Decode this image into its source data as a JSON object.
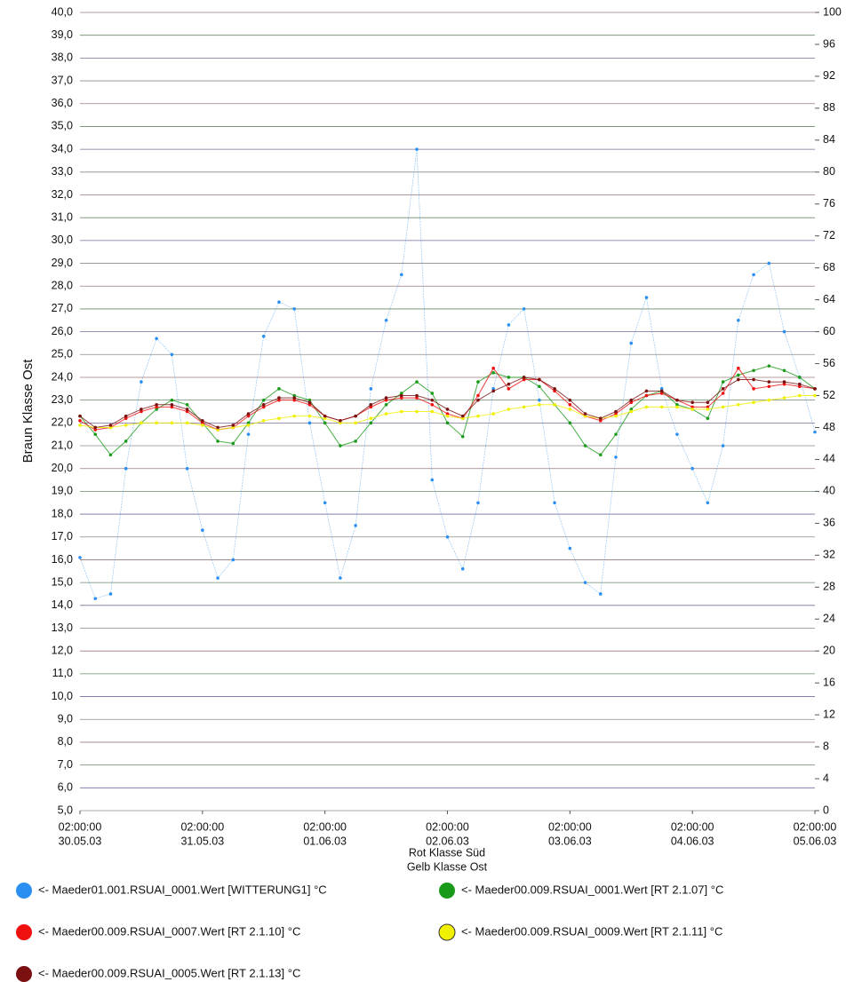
{
  "chart_data": {
    "type": "line",
    "ylabel": "Braun Klasse Ost",
    "xlabels": [
      "Rot Klasse Süd",
      "Gelb Klasse Ost"
    ],
    "x": [
      "30.05.03 02:00:00",
      "30.05.03 05:00:00",
      "30.05.03 08:00:00",
      "30.05.03 11:00:00",
      "30.05.03 14:00:00",
      "30.05.03 17:00:00",
      "30.05.03 20:00:00",
      "30.05.03 23:00:00",
      "31.05.03 02:00:00",
      "31.05.03 05:00:00",
      "31.05.03 08:00:00",
      "31.05.03 11:00:00",
      "31.05.03 14:00:00",
      "31.05.03 17:00:00",
      "31.05.03 20:00:00",
      "31.05.03 23:00:00",
      "01.06.03 02:00:00",
      "01.06.03 05:00:00",
      "01.06.03 08:00:00",
      "01.06.03 11:00:00",
      "01.06.03 14:00:00",
      "01.06.03 17:00:00",
      "01.06.03 20:00:00",
      "01.06.03 23:00:00",
      "02.06.03 02:00:00",
      "02.06.03 05:00:00",
      "02.06.03 08:00:00",
      "02.06.03 11:00:00",
      "02.06.03 14:00:00",
      "02.06.03 17:00:00",
      "02.06.03 20:00:00",
      "02.06.03 23:00:00",
      "03.06.03 02:00:00",
      "03.06.03 05:00:00",
      "03.06.03 08:00:00",
      "03.06.03 11:00:00",
      "03.06.03 14:00:00",
      "03.06.03 17:00:00",
      "03.06.03 20:00:00",
      "03.06.03 23:00:00",
      "04.06.03 02:00:00",
      "04.06.03 05:00:00",
      "04.06.03 08:00:00",
      "04.06.03 11:00:00",
      "04.06.03 14:00:00",
      "04.06.03 17:00:00",
      "04.06.03 20:00:00",
      "04.06.03 23:00:00",
      "05.06.03 02:00:00"
    ],
    "series": [
      {
        "name": "<- Maeder01.001.RSUAI_0001.Wert [WITTERUNG1] °C",
        "color": "#2a8ff0",
        "values": [
          16.1,
          14.3,
          14.5,
          20.0,
          23.8,
          25.7,
          25.0,
          20.0,
          17.3,
          15.2,
          16.0,
          21.5,
          25.8,
          27.3,
          27.0,
          22.0,
          18.5,
          15.2,
          17.5,
          23.5,
          26.5,
          28.5,
          34.0,
          19.5,
          17.0,
          15.6,
          18.5,
          23.5,
          26.3,
          27.0,
          23.0,
          18.5,
          16.5,
          15.0,
          14.5,
          20.5,
          25.5,
          27.5,
          23.5,
          21.5,
          20.0,
          18.5,
          21.0,
          26.5,
          28.5,
          29.0,
          26.0,
          24.0,
          21.6
        ]
      },
      {
        "name": "<- Maeder00.009.RSUAI_0001.Wert [RT 2.1.07] °C",
        "color": "#1a9a1a",
        "values": [
          22.3,
          21.5,
          20.6,
          21.2,
          22.0,
          22.6,
          23.0,
          22.8,
          22.0,
          21.2,
          21.1,
          22.0,
          23.0,
          23.5,
          23.2,
          23.0,
          22.0,
          21.0,
          21.2,
          22.0,
          22.8,
          23.3,
          23.8,
          23.3,
          22.0,
          21.4,
          23.8,
          24.2,
          24.0,
          24.0,
          23.6,
          22.8,
          22.0,
          21.0,
          20.6,
          21.5,
          22.6,
          23.2,
          23.4,
          22.8,
          22.6,
          22.2,
          23.8,
          24.1,
          24.3,
          24.5,
          24.3,
          24.0,
          23.5
        ]
      },
      {
        "name": "<- Maeder00.009.RSUAI_0007.Wert [RT 2.1.10] °C",
        "color": "#f01010",
        "values": [
          22.1,
          21.7,
          21.8,
          22.2,
          22.5,
          22.7,
          22.7,
          22.5,
          22.0,
          21.7,
          21.8,
          22.3,
          22.7,
          23.0,
          23.0,
          22.8,
          22.3,
          22.1,
          22.3,
          22.7,
          23.0,
          23.1,
          23.1,
          22.8,
          22.4,
          22.2,
          23.2,
          24.4,
          23.5,
          23.9,
          23.9,
          23.4,
          22.8,
          22.3,
          22.1,
          22.4,
          22.9,
          23.2,
          23.3,
          23.0,
          22.7,
          22.7,
          23.3,
          24.4,
          23.5,
          23.6,
          23.7,
          23.6,
          23.5
        ]
      },
      {
        "name": "<- Maeder00.009.RSUAI_0009.Wert [RT 2.1.11] °C",
        "color": "#f0f000",
        "values": [
          21.9,
          21.8,
          21.8,
          21.9,
          22.0,
          22.0,
          22.0,
          22.0,
          21.9,
          21.7,
          21.8,
          21.9,
          22.1,
          22.2,
          22.3,
          22.3,
          22.2,
          22.0,
          22.0,
          22.2,
          22.4,
          22.5,
          22.5,
          22.5,
          22.3,
          22.2,
          22.3,
          22.4,
          22.6,
          22.7,
          22.8,
          22.8,
          22.6,
          22.3,
          22.2,
          22.3,
          22.5,
          22.7,
          22.7,
          22.7,
          22.6,
          22.6,
          22.7,
          22.8,
          22.9,
          23.0,
          23.1,
          23.2,
          23.2
        ]
      },
      {
        "name": "<- Maeder00.009.RSUAI_0005.Wert [RT 2.1.13] °C",
        "color": "#7a1010",
        "values": [
          22.3,
          21.8,
          21.9,
          22.3,
          22.6,
          22.8,
          22.8,
          22.6,
          22.1,
          21.8,
          21.9,
          22.4,
          22.8,
          23.1,
          23.1,
          22.9,
          22.3,
          22.1,
          22.3,
          22.8,
          23.1,
          23.2,
          23.2,
          23.0,
          22.6,
          22.3,
          23.0,
          23.4,
          23.7,
          24.0,
          23.9,
          23.5,
          23.0,
          22.4,
          22.2,
          22.5,
          23.0,
          23.4,
          23.4,
          23.0,
          22.9,
          22.9,
          23.5,
          23.9,
          23.9,
          23.8,
          23.8,
          23.7,
          23.5
        ]
      }
    ],
    "xlim": [
      "30.05.03 02:00:00",
      "05.06.03 02:00:00"
    ],
    "xticks": [
      {
        "value": "30.05.03 02:00:00",
        "label": [
          "02:00:00",
          "30.05.03"
        ]
      },
      {
        "value": "31.05.03 02:00:00",
        "label": [
          "02:00:00",
          "31.05.03"
        ]
      },
      {
        "value": "01.06.03 02:00:00",
        "label": [
          "02:00:00",
          "01.06.03"
        ]
      },
      {
        "value": "02.06.03 02:00:00",
        "label": [
          "02:00:00",
          "02.06.03"
        ]
      },
      {
        "value": "03.06.03 02:00:00",
        "label": [
          "02:00:00",
          "03.06.03"
        ]
      },
      {
        "value": "04.06.03 02:00:00",
        "label": [
          "02:00:00",
          "04.06.03"
        ]
      },
      {
        "value": "05.06.03 02:00:00",
        "label": [
          "02:00:00",
          "05.06.03"
        ]
      }
    ],
    "ylim": [
      5,
      40
    ],
    "yticks": [
      {
        "value": 5,
        "label": "5,0"
      },
      {
        "value": 6,
        "label": "6,0"
      },
      {
        "value": 7,
        "label": "7,0"
      },
      {
        "value": 8,
        "label": "8,0"
      },
      {
        "value": 9,
        "label": "9,0"
      },
      {
        "value": 10,
        "label": "10,0"
      },
      {
        "value": 11,
        "label": "11,0"
      },
      {
        "value": 12,
        "label": "12,0"
      },
      {
        "value": 13,
        "label": "13,0"
      },
      {
        "value": 14,
        "label": "14,0"
      },
      {
        "value": 15,
        "label": "15,0"
      },
      {
        "value": 16,
        "label": "16,0"
      },
      {
        "value": 17,
        "label": "17,0"
      },
      {
        "value": 18,
        "label": "18,0"
      },
      {
        "value": 19,
        "label": "19,0"
      },
      {
        "value": 20,
        "label": "20,0"
      },
      {
        "value": 21,
        "label": "21,0"
      },
      {
        "value": 22,
        "label": "22,0"
      },
      {
        "value": 23,
        "label": "23,0"
      },
      {
        "value": 24,
        "label": "24,0"
      },
      {
        "value": 25,
        "label": "25,0"
      },
      {
        "value": 26,
        "label": "26,0"
      },
      {
        "value": 27,
        "label": "27,0"
      },
      {
        "value": 28,
        "label": "28,0"
      },
      {
        "value": 29,
        "label": "29,0"
      },
      {
        "value": 30,
        "label": "30,0"
      },
      {
        "value": 31,
        "label": "31,0"
      },
      {
        "value": 32,
        "label": "32,0"
      },
      {
        "value": 33,
        "label": "33,0"
      },
      {
        "value": 34,
        "label": "34,0"
      },
      {
        "value": 35,
        "label": "35,0"
      },
      {
        "value": 36,
        "label": "36,0"
      },
      {
        "value": 37,
        "label": "37,0"
      },
      {
        "value": 38,
        "label": "38,0"
      },
      {
        "value": 39,
        "label": "39,0"
      },
      {
        "value": 40,
        "label": "40,0"
      }
    ],
    "y2lim": [
      0,
      100
    ],
    "y2ticks": [
      0,
      4,
      8,
      12,
      16,
      20,
      24,
      28,
      32,
      36,
      40,
      44,
      48,
      52,
      56,
      60,
      64,
      68,
      72,
      76,
      80,
      84,
      88,
      92,
      96,
      100
    ],
    "grid": true
  }
}
